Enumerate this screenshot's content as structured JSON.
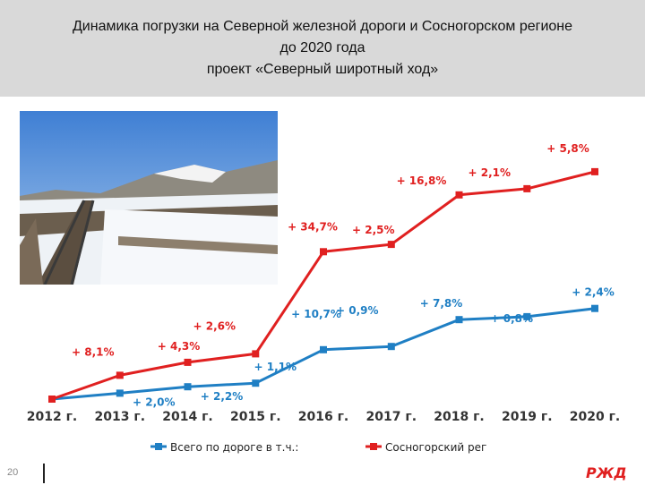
{
  "slide": {
    "title_lines": [
      "Динамика погрузки на Северной железной дороги и  Сосногорском регионе",
      "до 2020 года",
      "проект «Северный широтный ход»"
    ],
    "page_number": "20",
    "photo": "railway-track-snowy-hills-photo",
    "logo": "rzd-logo"
  },
  "chart_data": {
    "type": "line",
    "categories": [
      "2012 г.",
      "2013 г.",
      "2014 г.",
      "2015 г.",
      "2016 г.",
      "2017 г.",
      "2018 г.",
      "2019 г.",
      "2020 г."
    ],
    "series": [
      {
        "name": "Всего по дороге в т.ч.:",
        "color": "#1f7fc4",
        "values": [
          0,
          2.0,
          4.2,
          5.4,
          16.8,
          17.9,
          27.0,
          28.0,
          30.8
        ],
        "labels": [
          "",
          "+ 2,0%",
          "+ 2,2%",
          "+ 1,1%",
          "+ 10,7%",
          "+ 0,9%",
          "+ 7,8%",
          "+ 0,8%",
          "+ 2,4%"
        ]
      },
      {
        "name": "Сосногорский рег",
        "color": "#e02020",
        "values": [
          0,
          8.1,
          12.5,
          15.4,
          50.1,
          52.6,
          69.4,
          71.5,
          77.3
        ],
        "labels": [
          "",
          "+ 8,1%",
          "+ 4,3%",
          "+ 2,6%",
          "+ 34,7%",
          "+ 2,5%",
          "+ 16,8%",
          "+ 2,1%",
          "+ 5,8%"
        ]
      }
    ],
    "ylim": [
      0,
      80
    ],
    "grid": false,
    "legend": "bottom"
  }
}
